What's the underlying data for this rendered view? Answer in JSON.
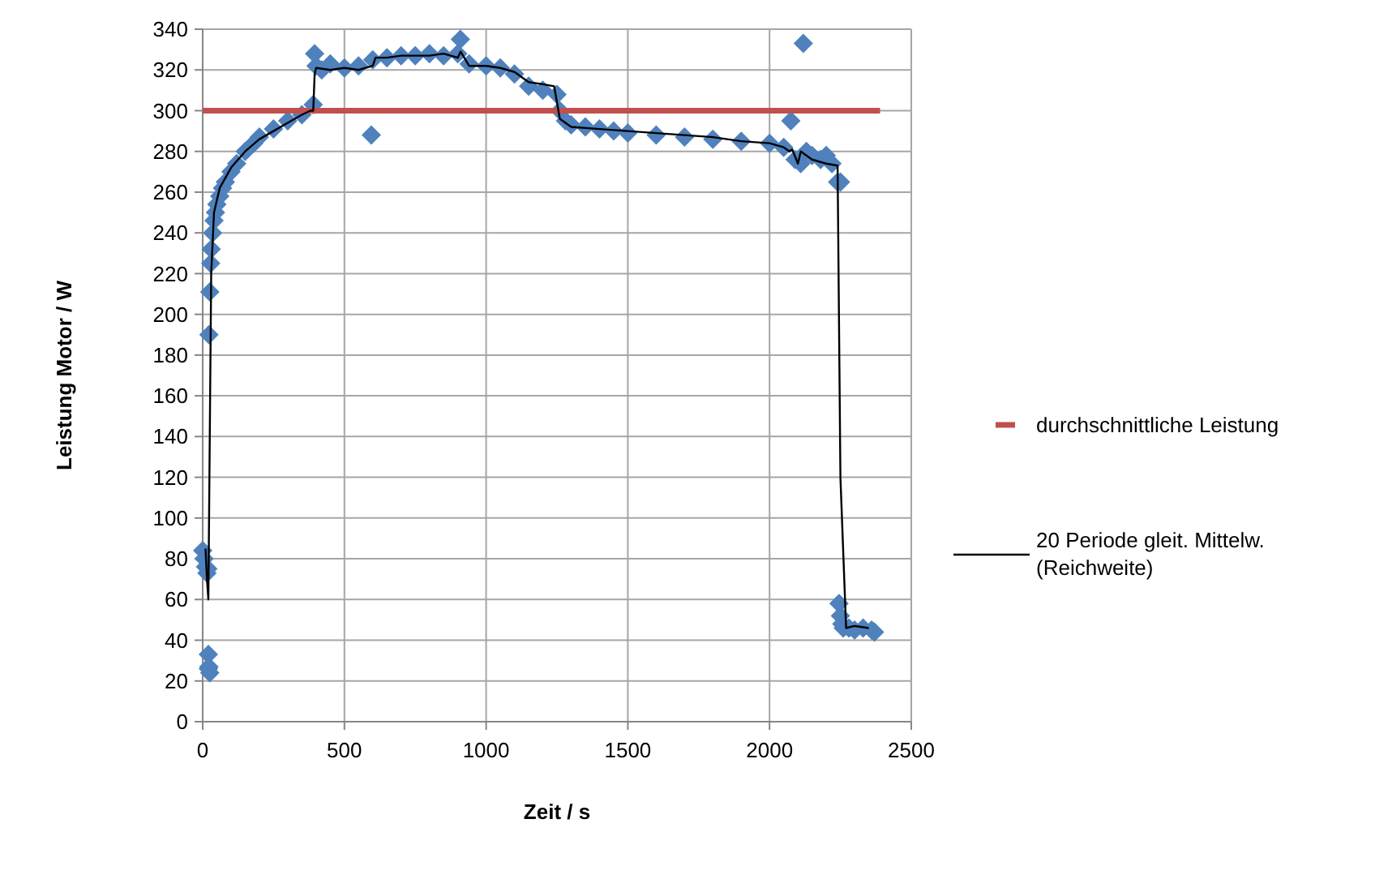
{
  "chart_data": {
    "type": "scatter",
    "xlabel": "Zeit / s",
    "ylabel": "Leistung Motor / W",
    "xlim": [
      0,
      2500
    ],
    "xticks": [
      0,
      500,
      1000,
      1500,
      2000,
      2500
    ],
    "ylim": [
      0,
      340
    ],
    "yticks": [
      0,
      20,
      40,
      60,
      80,
      100,
      120,
      140,
      160,
      180,
      200,
      220,
      240,
      260,
      280,
      300,
      320,
      340
    ],
    "grid": true,
    "legend": "right",
    "series": [
      {
        "marker": "diamond",
        "color": "#4f81bd",
        "x": [
          0,
          5,
          10,
          15,
          18,
          20,
          22,
          25,
          20,
          22,
          25,
          28,
          30,
          35,
          40,
          45,
          50,
          60,
          70,
          80,
          100,
          120,
          150,
          180,
          200,
          250,
          300,
          350,
          390,
          395,
          400,
          420,
          450,
          500,
          550,
          595,
          600,
          650,
          700,
          750,
          800,
          850,
          900,
          909,
          940,
          1000,
          1050,
          1100,
          1150,
          1200,
          1250,
          1260,
          1280,
          1300,
          1350,
          1400,
          1450,
          1500,
          1600,
          1700,
          1800,
          1900,
          2000,
          2050,
          2075,
          2090,
          2110,
          2119,
          2130,
          2150,
          2180,
          2200,
          2220,
          2240,
          2250,
          2245,
          2250,
          2255,
          2260,
          2280,
          2300,
          2330,
          2360,
          2370
        ],
        "values": [
          84,
          80,
          76,
          73,
          75,
          33,
          27,
          24,
          26,
          190,
          211,
          225,
          232,
          240,
          246,
          250,
          254,
          258,
          262,
          265,
          270,
          274,
          280,
          284,
          287,
          291,
          295,
          298,
          303,
          328,
          322,
          320,
          323,
          321,
          322,
          288,
          325,
          326,
          327,
          327,
          328,
          327,
          328,
          335,
          323,
          322,
          321,
          318,
          312,
          310,
          308,
          300,
          295,
          293,
          292,
          291,
          290,
          289,
          288,
          287,
          286,
          285,
          284,
          282,
          295,
          276,
          274,
          333,
          280,
          278,
          276,
          278,
          274,
          265,
          265,
          58,
          52,
          48,
          46,
          46,
          45,
          46,
          45,
          44
        ]
      },
      {
        "type": "line",
        "name": "durchschnittliche Leistung",
        "color": "#c0504d",
        "x": [
          0,
          2390
        ],
        "values": [
          300,
          300
        ]
      },
      {
        "type": "line",
        "name": "20 Periode gleit. Mittelw. (Reichweite)",
        "color": "#000000",
        "x": [
          10,
          15,
          20,
          25,
          30,
          40,
          60,
          100,
          150,
          200,
          250,
          300,
          350,
          380,
          390,
          395,
          400,
          450,
          500,
          550,
          600,
          610,
          650,
          700,
          800,
          850,
          900,
          910,
          940,
          1000,
          1050,
          1100,
          1150,
          1200,
          1240,
          1260,
          1280,
          1300,
          1400,
          1500,
          1600,
          1700,
          1800,
          1900,
          2000,
          2050,
          2070,
          2080,
          2100,
          2110,
          2130,
          2150,
          2200,
          2240,
          2250,
          2270,
          2300,
          2350
        ],
        "values": [
          85,
          70,
          60,
          140,
          220,
          250,
          262,
          272,
          280,
          286,
          290,
          294,
          298,
          300,
          300,
          318,
          321,
          320,
          321,
          320,
          322,
          326,
          326,
          327,
          327,
          328,
          326,
          329,
          322,
          322,
          321,
          319,
          314,
          313,
          312,
          296,
          294,
          292,
          291,
          290,
          289,
          288,
          287,
          285,
          284,
          282,
          280,
          281,
          274,
          280,
          278,
          276,
          274,
          273,
          120,
          46,
          47,
          46
        ]
      }
    ]
  }
}
